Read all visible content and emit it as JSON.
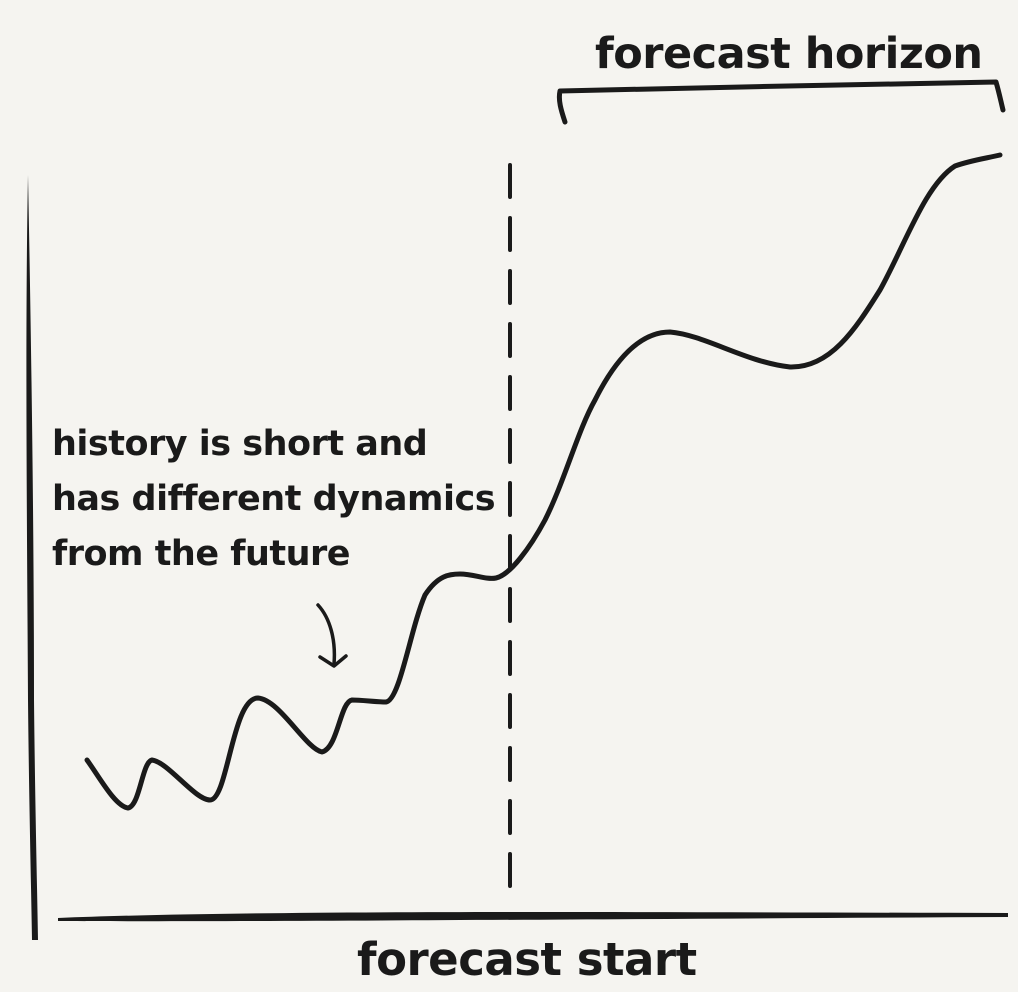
{
  "labels": {
    "forecast_horizon": "forecast horizon",
    "forecast_start": "forecast start",
    "annotation_lines": [
      "history is short and",
      "has different dynamics",
      "from the future"
    ]
  },
  "colors": {
    "background": "#f5f4f0",
    "ink": "#1a1a1a"
  },
  "icons": {
    "annotation_arrow": "curved-arrow-down-icon"
  }
}
